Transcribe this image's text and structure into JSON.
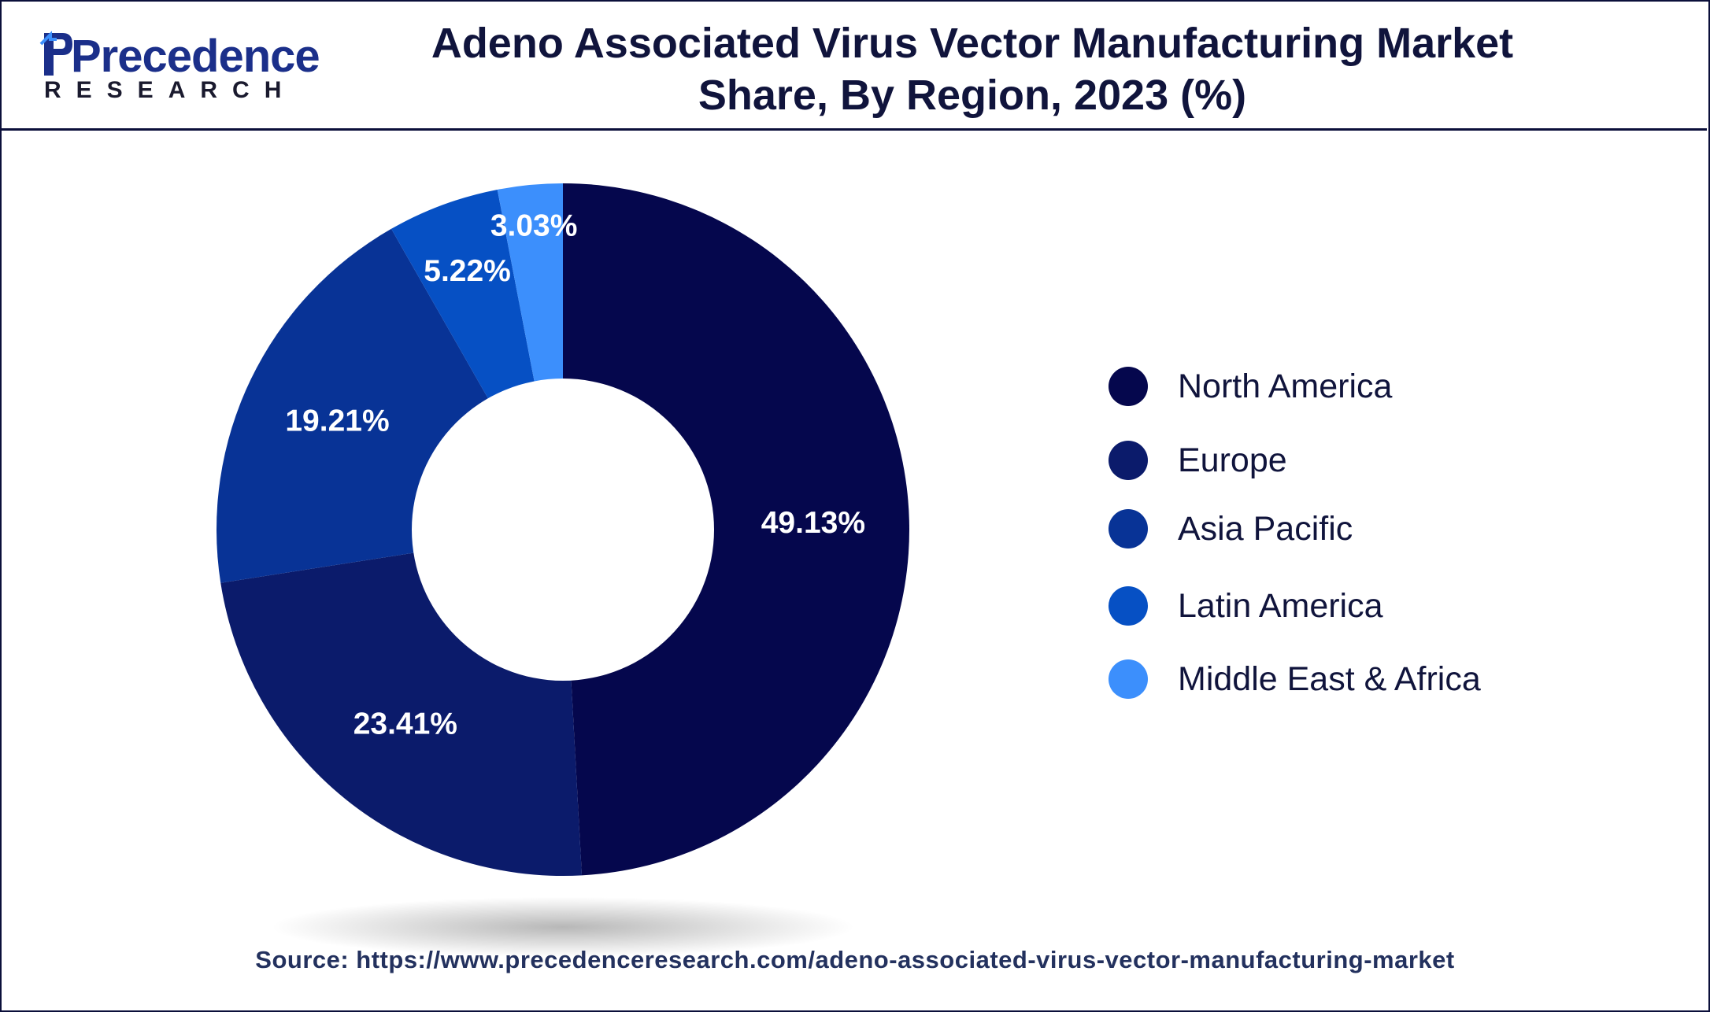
{
  "header": {
    "logo_text": "Precedence",
    "logo_subtext": "RESEARCH",
    "title_line1": "Adeno Associated Virus Vector Manufacturing Market",
    "title_line2": "Share, By Region, 2023 (%)"
  },
  "chart_data": {
    "type": "pie",
    "variant": "donut",
    "title": "Adeno Associated Virus Vector Manufacturing Market Share, By Region, 2023 (%)",
    "unit": "%",
    "legend_position": "right",
    "slices": [
      {
        "label": "North America",
        "value": 49.13,
        "value_label": "49.13%",
        "color": "#05074d"
      },
      {
        "label": "Europe",
        "value": 23.41,
        "value_label": "23.41%",
        "color": "#0b1b6b"
      },
      {
        "label": "Asia Pacific",
        "value": 19.21,
        "value_label": "19.21%",
        "color": "#083396"
      },
      {
        "label": "Latin America",
        "value": 5.22,
        "value_label": "5.22%",
        "color": "#0650c4"
      },
      {
        "label": "Middle East & Africa",
        "value": 3.03,
        "value_label": "3.03%",
        "color": "#3c8ffc"
      }
    ]
  },
  "footer": {
    "source": "Source: https://www.precedenceresearch.com/adeno-associated-virus-vector-manufacturing-market"
  }
}
